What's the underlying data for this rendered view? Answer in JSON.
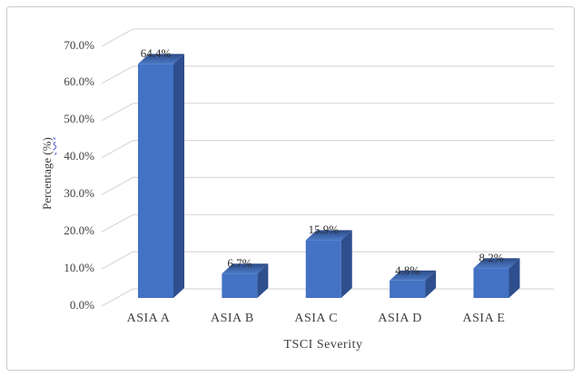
{
  "figure": {
    "background": "#ffffff",
    "border_color": "#c9c9c9"
  },
  "chart_data": {
    "type": "bar",
    "style": "3d-column",
    "title": "",
    "xlabel": "TSCI Severity",
    "ylabel": "Percentage (%)",
    "ylabel_parts": {
      "main": "Percentage ",
      "suffix": "(%)"
    },
    "categories": [
      "ASIA A",
      "ASIA B",
      "ASIA C",
      "ASIA D",
      "ASIA E"
    ],
    "values": [
      64.4,
      6.7,
      15.9,
      4.8,
      8.2
    ],
    "value_labels": [
      "64.4%",
      "6.7%",
      "15.9%",
      "4.8%",
      "8.2%"
    ],
    "y_ticks": [
      {
        "value": 0,
        "label": "0.0%"
      },
      {
        "value": 10,
        "label": "10.0%"
      },
      {
        "value": 20,
        "label": "20.0%"
      },
      {
        "value": 30,
        "label": "30.0%"
      },
      {
        "value": 40,
        "label": "40.0%"
      },
      {
        "value": 50,
        "label": "50.0%"
      },
      {
        "value": 60,
        "label": "60.0%"
      },
      {
        "value": 70,
        "label": "70.0%"
      }
    ],
    "ylim": [
      0,
      70
    ],
    "grid": true,
    "legend": "none",
    "colors": {
      "bar_front": "#4472C4",
      "bar_side": "#2E4E8E",
      "bar_top_back": "#2C4A86",
      "bar_top_front": "#4C7AC6",
      "gridline": "#D9D9D9",
      "axis_text": "#3E3E3E",
      "spellcheck_squiggle": "#3F51D6"
    }
  }
}
